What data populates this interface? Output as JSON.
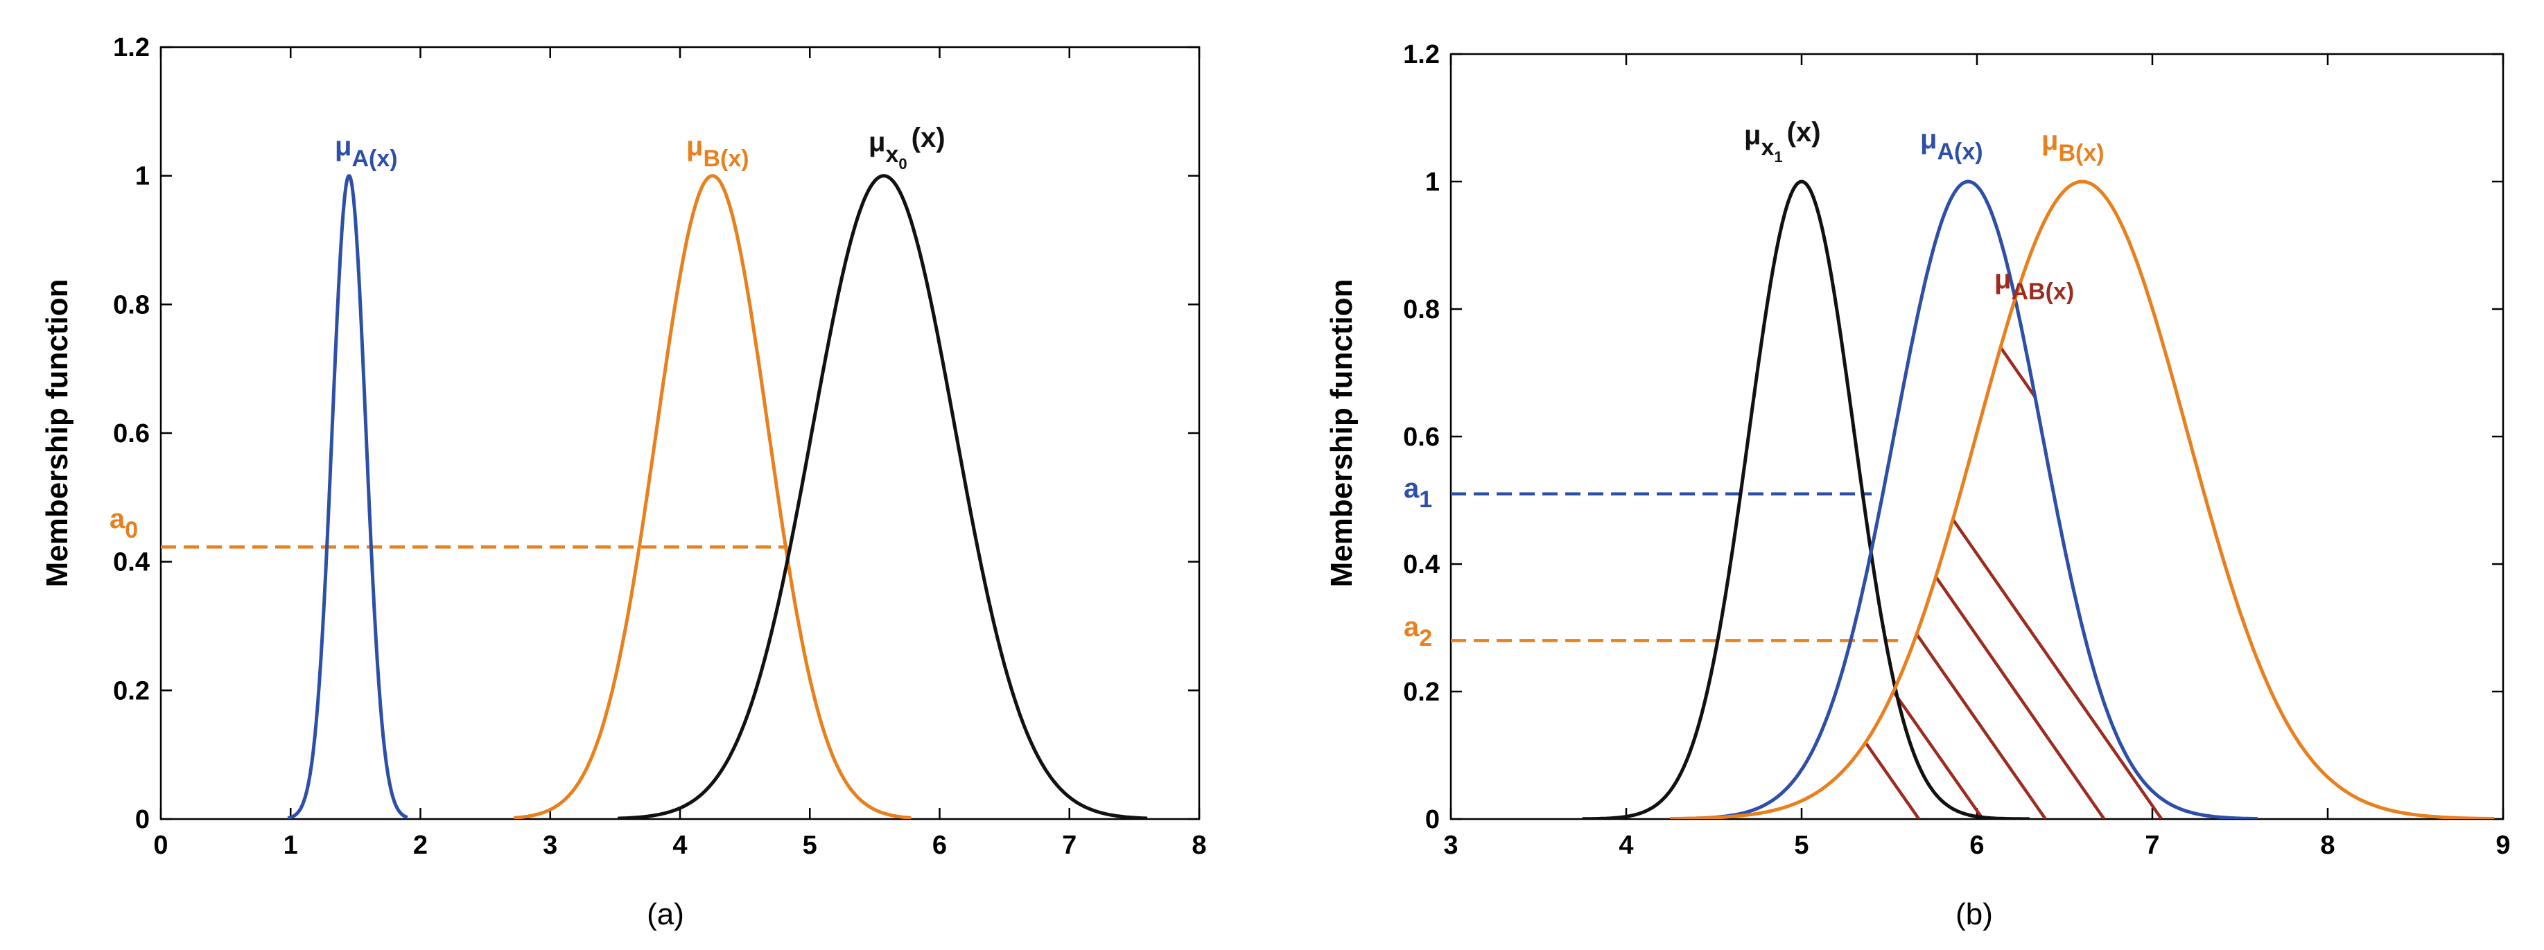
{
  "chart_data": [
    {
      "id": "a",
      "type": "line",
      "caption": "(a)",
      "ylabel": "Membership  function",
      "xlim": [
        0,
        8
      ],
      "ylim": [
        0,
        1.2
      ],
      "xticks": [
        "0",
        "1",
        "2",
        "3",
        "4",
        "5",
        "6",
        "7",
        "8"
      ],
      "yticks": [
        "0",
        "0.2",
        "0.4",
        "0.6",
        "0.8",
        "1",
        "1.2"
      ],
      "series": [
        {
          "name": "μA(x)",
          "label_main": "μ",
          "label_sub": "A(x)",
          "color": "#2E4FA8",
          "mean": 1.45,
          "sigma": 0.13,
          "range": [
            0.98,
            1.9
          ]
        },
        {
          "name": "μB(x)",
          "label_main": "μ",
          "label_sub": "B(x)",
          "color": "#E8801E",
          "mean": 4.25,
          "sigma": 0.43,
          "range": [
            2.72,
            5.78
          ]
        },
        {
          "name": "μx0(x)",
          "label_main": "μ",
          "label_sub": "x",
          "label_subsub": "0",
          "label_tail": "(x)",
          "color": "#111111",
          "mean": 5.57,
          "sigma": 0.55,
          "range": [
            3.52,
            7.6
          ]
        }
      ],
      "hlines": [
        {
          "name": "a0",
          "label_main": "a",
          "label_sub": "0",
          "y": 0.423,
          "x_end": 4.83,
          "color": "#E8801E",
          "dashed": true
        }
      ]
    },
    {
      "id": "b",
      "type": "line",
      "caption": "(b)",
      "ylabel": "Membership   function",
      "xlim": [
        3,
        9
      ],
      "ylim": [
        0,
        1.2
      ],
      "xticks": [
        "3",
        "4",
        "5",
        "6",
        "7",
        "8",
        "9"
      ],
      "yticks": [
        "0",
        "0.2",
        "0.4",
        "0.6",
        "0.8",
        "1",
        "1.2"
      ],
      "series": [
        {
          "name": "μx1(x)",
          "label_main": "μ",
          "label_sub": "x",
          "label_subsub": "1",
          "label_tail": "(x)",
          "color": "#111111",
          "mean": 5.0,
          "sigma": 0.3,
          "range": [
            3.75,
            6.3
          ]
        },
        {
          "name": "μA(x)",
          "label_main": "μ",
          "label_sub": "A(x)",
          "color": "#2E4FA8",
          "mean": 5.95,
          "sigma": 0.42,
          "range": [
            4.25,
            7.6
          ]
        },
        {
          "name": "μB(x)",
          "label_main": "μ",
          "label_sub": "B(x)",
          "color": "#E8801E",
          "mean": 6.6,
          "sigma": 0.6,
          "range": [
            4.25,
            8.95
          ]
        }
      ],
      "hlines": [
        {
          "name": "a1",
          "label_main": "a",
          "label_sub": "1",
          "y": 0.51,
          "x_end": 5.4,
          "color": "#2E4FA8",
          "dashed": true
        },
        {
          "name": "a2",
          "label_main": "a",
          "label_sub": "2",
          "y": 0.28,
          "x_end": 5.55,
          "color": "#E8801E",
          "dashed": true
        }
      ],
      "annotation": {
        "name": "μAB(x)",
        "label_main": "μ",
        "label_sub": "AB(x)",
        "color": "#9B2C1F"
      }
    }
  ]
}
